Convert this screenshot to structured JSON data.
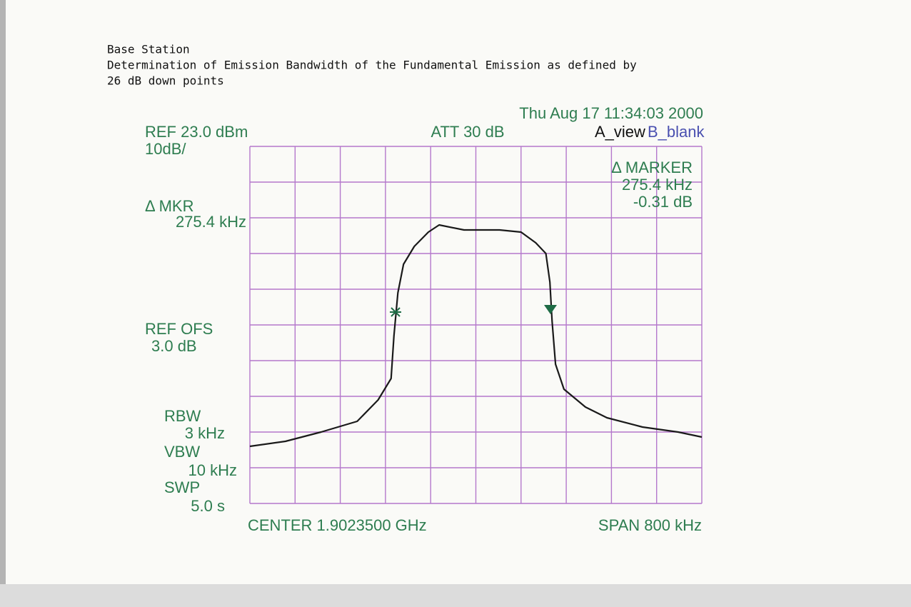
{
  "chart_data": {
    "type": "line",
    "title_lines": [
      "Base Station",
      "Determination of Emission Bandwidth of the Fundamental Emission as defined by",
      "26 dB down points"
    ],
    "timestamp": "Thu Aug 17 11:34:03 2000",
    "ref_level": "REF 23.0 dBm",
    "scale": "10dB/",
    "attenuation": "ATT 30 dB",
    "trace_a": "A_view",
    "trace_b": "B_blank",
    "marker_box": [
      "Δ MARKER",
      "275.4 kHz",
      "-0.31 dB"
    ],
    "mkr_label": "Δ MKR",
    "mkr_value": "275.4 kHz",
    "ref_offset_label": "REF OFS",
    "ref_offset_value": "3.0 dB",
    "rbw_label": "RBW",
    "rbw_value": "3 kHz",
    "vbw_label": "VBW",
    "vbw_value": "10 kHz",
    "swp_label": "SWP",
    "swp_value": "5.0 s",
    "center": "CENTER 1.9023500 GHz",
    "span": "SPAN 800 kHz",
    "xlim": [
      1901.95,
      1902.75
    ],
    "xticks": [
      1901.95,
      1902.03,
      1902.11,
      1902.19,
      1902.27,
      1902.35,
      1902.43,
      1902.51,
      1902.59,
      1902.67,
      1902.75
    ],
    "ylim": [
      -77,
      23
    ],
    "yticks": [
      -77,
      -67,
      -57,
      -47,
      -37,
      -27,
      -17,
      -7,
      3,
      13,
      23
    ],
    "grid": true,
    "series": [
      {
        "color": "#1a1a1a",
        "x": [
          1901.95,
          1902.013,
          1902.076,
          1902.14,
          1902.177,
          1902.2,
          1902.205,
          1902.212,
          1902.222,
          1902.241,
          1902.266,
          1902.285,
          1902.329,
          1902.392,
          1902.43,
          1902.456,
          1902.474,
          1902.481,
          1902.485,
          1902.491,
          1902.506,
          1902.544,
          1902.582,
          1902.645,
          1902.708,
          1902.75
        ],
        "values": [
          -61,
          -59.6,
          -57,
          -54,
          -48,
          -42,
          -30,
          -18,
          -10,
          -5,
          -1,
          1,
          -0.4,
          -0.4,
          -1,
          -4,
          -7,
          -15,
          -26,
          -38,
          -45,
          -50,
          -53,
          -55.6,
          -57,
          -58.4
        ]
      }
    ]
  }
}
